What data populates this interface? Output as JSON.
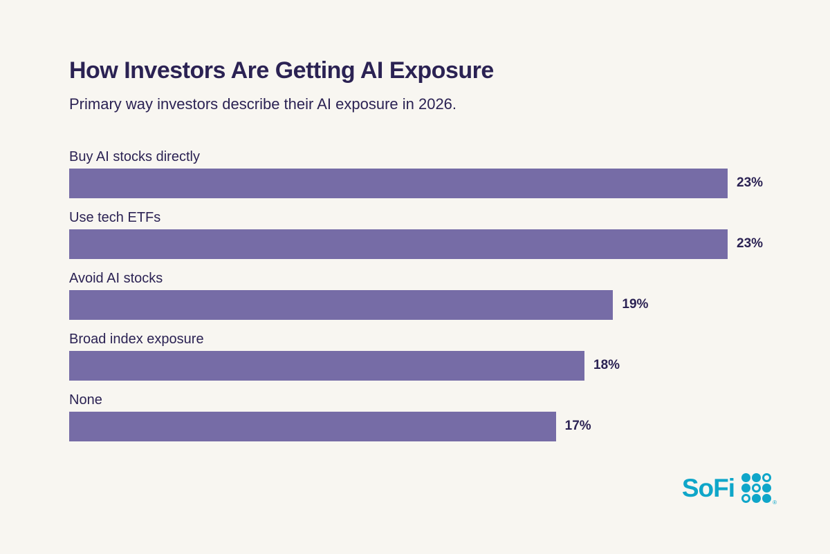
{
  "page": {
    "background_color": "#F8F6F1",
    "text_color": "#2B2253"
  },
  "header": {
    "title": "How Investors Are Getting AI Exposure",
    "subtitle": "Primary way investors describe their AI exposure in 2026."
  },
  "chart_data": {
    "type": "bar",
    "orientation": "horizontal",
    "title": "How Investors Are Getting AI Exposure",
    "subtitle": "Primary way investors describe their AI exposure in 2026.",
    "categories": [
      "Buy AI stocks directly",
      "Use tech ETFs",
      "Avoid AI stocks",
      "Broad index exposure",
      "None"
    ],
    "values": [
      23,
      23,
      19,
      18,
      17
    ],
    "value_labels": [
      "23%",
      "23%",
      "19%",
      "18%",
      "17%"
    ],
    "xlabel": "",
    "ylabel": "",
    "xlim": [
      0,
      23
    ],
    "grid": false,
    "legend": false,
    "bar_color": "#766CA6",
    "value_label_color": "#2B2253"
  },
  "branding": {
    "logo_text": "SoFi",
    "logo_color": "#0FA6C9",
    "registered_mark": "®",
    "dot_pattern": [
      [
        "filled",
        "filled",
        "ring"
      ],
      [
        "filled",
        "ring",
        "filled"
      ],
      [
        "ring",
        "filled",
        "filled"
      ]
    ]
  }
}
